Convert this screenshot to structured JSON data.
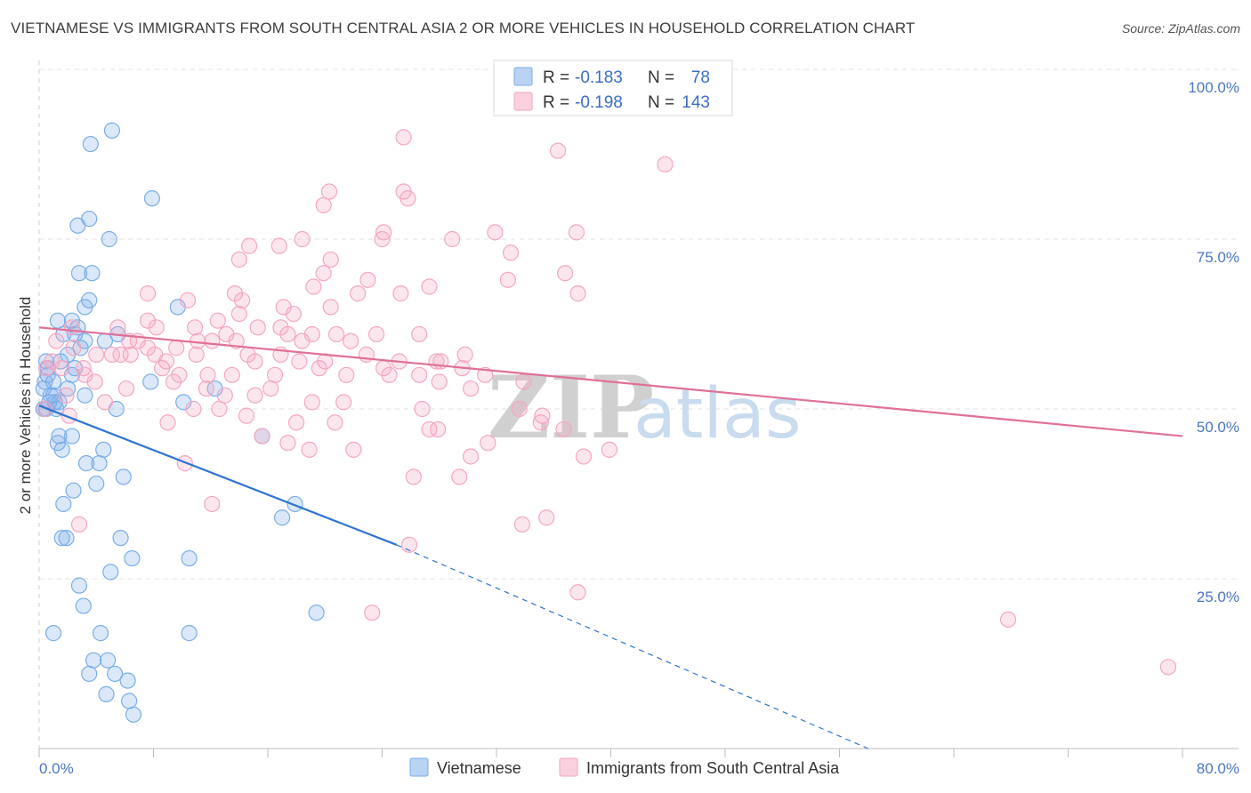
{
  "title": "VIETNAMESE VS IMMIGRANTS FROM SOUTH CENTRAL ASIA 2 OR MORE VEHICLES IN HOUSEHOLD CORRELATION CHART",
  "source": "Source: ZipAtlas.com",
  "watermark": {
    "zip": "ZIP",
    "atlas": "atlas"
  },
  "legend": {
    "rows": [
      {
        "r_label": "R = ",
        "r_value": "-0.183",
        "n_label": "N = ",
        "n_value": "78",
        "color": "#7aaee8"
      },
      {
        "r_label": "R = ",
        "r_value": "-0.198",
        "n_label": "N = ",
        "n_value": "143",
        "color": "#f4a7c0"
      }
    ]
  },
  "chart_data": {
    "type": "scatter",
    "title": "VIETNAMESE VS IMMIGRANTS FROM SOUTH CENTRAL ASIA 2 OR MORE VEHICLES IN HOUSEHOLD CORRELATION CHART",
    "xlabel": "",
    "ylabel": "2 or more Vehicles in Household",
    "xlim": [
      0,
      80
    ],
    "ylim": [
      0,
      100
    ],
    "x_tick_labels": [
      "0.0%",
      "80.0%"
    ],
    "y_tick_labels": [
      "100.0%",
      "75.0%",
      "50.0%",
      "25.0%"
    ],
    "y_tick_values": [
      100,
      75,
      50,
      25
    ],
    "grid": true,
    "legend_position": "top-center",
    "series": [
      {
        "name": "Vietnamese",
        "color": "#7aaee8",
        "line_color": "#2f74d0",
        "trend": {
          "x0": 0,
          "y0": 50.5,
          "x1": 25,
          "y1": 30,
          "dash_x1": 58,
          "dash_y1": 0
        },
        "points": [
          [
            5.1,
            91
          ],
          [
            3.6,
            89
          ],
          [
            7.9,
            81
          ],
          [
            3.5,
            78
          ],
          [
            2.7,
            77
          ],
          [
            4.9,
            75
          ],
          [
            3.7,
            70
          ],
          [
            2.8,
            70
          ],
          [
            3.5,
            66
          ],
          [
            3.2,
            65
          ],
          [
            9.7,
            65
          ],
          [
            1.3,
            63
          ],
          [
            2.3,
            63
          ],
          [
            2.7,
            62
          ],
          [
            5.5,
            61
          ],
          [
            2.5,
            61
          ],
          [
            1.7,
            61
          ],
          [
            3.2,
            60
          ],
          [
            4.6,
            60
          ],
          [
            2.9,
            59
          ],
          [
            0.5,
            57
          ],
          [
            0.6,
            56
          ],
          [
            2.5,
            56
          ],
          [
            2.3,
            55
          ],
          [
            0.6,
            55
          ],
          [
            0.4,
            54
          ],
          [
            1.0,
            54
          ],
          [
            7.8,
            54
          ],
          [
            0.3,
            53
          ],
          [
            2.0,
            53
          ],
          [
            12.3,
            53
          ],
          [
            1.0,
            52
          ],
          [
            3.2,
            52
          ],
          [
            0.7,
            51
          ],
          [
            1.1,
            51
          ],
          [
            1.4,
            51
          ],
          [
            10.1,
            51
          ],
          [
            0.3,
            50
          ],
          [
            0.5,
            50
          ],
          [
            1.2,
            50
          ],
          [
            5.4,
            50
          ],
          [
            1.4,
            46
          ],
          [
            2.3,
            46
          ],
          [
            1.3,
            45
          ],
          [
            15.6,
            46
          ],
          [
            1.6,
            44
          ],
          [
            4.5,
            44
          ],
          [
            3.3,
            42
          ],
          [
            4.2,
            42
          ],
          [
            5.9,
            40
          ],
          [
            2.4,
            38
          ],
          [
            17.9,
            36
          ],
          [
            1.7,
            36
          ],
          [
            17.0,
            34
          ],
          [
            1.9,
            31
          ],
          [
            1.6,
            31
          ],
          [
            5.7,
            31
          ],
          [
            6.5,
            28
          ],
          [
            10.5,
            28
          ],
          [
            5.0,
            26
          ],
          [
            2.8,
            24
          ],
          [
            3.1,
            21
          ],
          [
            19.4,
            20
          ],
          [
            1.0,
            17
          ],
          [
            4.3,
            17
          ],
          [
            10.5,
            17
          ],
          [
            3.8,
            13
          ],
          [
            4.8,
            13
          ],
          [
            3.5,
            11
          ],
          [
            5.3,
            11
          ],
          [
            6.2,
            10
          ],
          [
            4.7,
            8
          ],
          [
            6.3,
            7
          ],
          [
            6.6,
            5
          ],
          [
            2.0,
            58
          ],
          [
            1.5,
            57
          ],
          [
            0.8,
            52
          ],
          [
            4.0,
            39
          ]
        ]
      },
      {
        "name": "Immigrants from South Central Asia",
        "color": "#f4a7c0",
        "line_color": "#e07098",
        "trend": {
          "x0": 0,
          "y0": 62,
          "x1": 80,
          "y1": 46
        },
        "points": [
          [
            25.5,
            90
          ],
          [
            36.3,
            88
          ],
          [
            43.8,
            86
          ],
          [
            20.3,
            82
          ],
          [
            25.5,
            82
          ],
          [
            25.8,
            81
          ],
          [
            19.9,
            80
          ],
          [
            24.1,
            76
          ],
          [
            31.9,
            76
          ],
          [
            37.6,
            76
          ],
          [
            24.0,
            75
          ],
          [
            28.9,
            75
          ],
          [
            18.4,
            75
          ],
          [
            14.7,
            74
          ],
          [
            16.8,
            74
          ],
          [
            33.0,
            73
          ],
          [
            14.0,
            72
          ],
          [
            20.4,
            72
          ],
          [
            36.8,
            70
          ],
          [
            19.9,
            70
          ],
          [
            32.8,
            69
          ],
          [
            23.0,
            69
          ],
          [
            27.3,
            68
          ],
          [
            25.3,
            67
          ],
          [
            22.3,
            67
          ],
          [
            19.2,
            68
          ],
          [
            7.6,
            67
          ],
          [
            10.4,
            66
          ],
          [
            13.7,
            67
          ],
          [
            37.7,
            67
          ],
          [
            14.2,
            66
          ],
          [
            20.4,
            65
          ],
          [
            17.1,
            65
          ],
          [
            17.8,
            64
          ],
          [
            14.0,
            64
          ],
          [
            12.5,
            63
          ],
          [
            5.5,
            62
          ],
          [
            8.2,
            62
          ],
          [
            10.9,
            62
          ],
          [
            15.3,
            62
          ],
          [
            17.4,
            61
          ],
          [
            19.1,
            61
          ],
          [
            20.8,
            61
          ],
          [
            23.6,
            61
          ],
          [
            11.1,
            60
          ],
          [
            13.8,
            60
          ],
          [
            12.1,
            60
          ],
          [
            9.6,
            59
          ],
          [
            7.6,
            59
          ],
          [
            5.7,
            58
          ],
          [
            8.1,
            58
          ],
          [
            6.4,
            58
          ],
          [
            11.0,
            58
          ],
          [
            14.6,
            58
          ],
          [
            16.9,
            58
          ],
          [
            20.0,
            57
          ],
          [
            18.2,
            57
          ],
          [
            27.8,
            57
          ],
          [
            25.2,
            57
          ],
          [
            29.6,
            56
          ],
          [
            3.1,
            56
          ],
          [
            8.6,
            56
          ],
          [
            11.8,
            55
          ],
          [
            13.5,
            55
          ],
          [
            16.5,
            55
          ],
          [
            21.5,
            55
          ],
          [
            24.5,
            55
          ],
          [
            26.6,
            55
          ],
          [
            28.0,
            54
          ],
          [
            30.2,
            53
          ],
          [
            13.0,
            52
          ],
          [
            15.1,
            52
          ],
          [
            19.1,
            51
          ],
          [
            21.3,
            51
          ],
          [
            10.8,
            50
          ],
          [
            26.8,
            50
          ],
          [
            35.2,
            49
          ],
          [
            18.0,
            48
          ],
          [
            27.3,
            47
          ],
          [
            15.6,
            46
          ],
          [
            17.4,
            45
          ],
          [
            22.0,
            44
          ],
          [
            10.2,
            42
          ],
          [
            26.2,
            40
          ],
          [
            29.4,
            40
          ],
          [
            33.8,
            33
          ],
          [
            12.1,
            36
          ],
          [
            35.5,
            34
          ],
          [
            25.9,
            30
          ],
          [
            37.7,
            23
          ],
          [
            23.3,
            20
          ],
          [
            67.8,
            19
          ],
          [
            79.0,
            12
          ],
          [
            2.3,
            62
          ],
          [
            1.2,
            60
          ],
          [
            0.9,
            57
          ],
          [
            2.4,
            59
          ],
          [
            3.2,
            55
          ],
          [
            1.6,
            56
          ],
          [
            5.1,
            58
          ],
          [
            6.3,
            60
          ],
          [
            7.6,
            63
          ],
          [
            8.9,
            57
          ],
          [
            9.4,
            54
          ],
          [
            11.7,
            53
          ],
          [
            13.1,
            61
          ],
          [
            15.1,
            57
          ],
          [
            16.9,
            62
          ],
          [
            18.4,
            60
          ],
          [
            19.6,
            56
          ],
          [
            21.8,
            60
          ],
          [
            22.9,
            58
          ],
          [
            24.1,
            56
          ],
          [
            26.6,
            61
          ],
          [
            28.1,
            57
          ],
          [
            29.8,
            58
          ],
          [
            31.2,
            55
          ],
          [
            33.9,
            54
          ],
          [
            35.1,
            48
          ],
          [
            36.7,
            47
          ],
          [
            38.1,
            43
          ],
          [
            39.9,
            44
          ],
          [
            2.8,
            33
          ],
          [
            4.0,
            58
          ],
          [
            9.0,
            48
          ],
          [
            14.5,
            49
          ],
          [
            6.1,
            53
          ],
          [
            4.6,
            51
          ],
          [
            3.9,
            54
          ],
          [
            1.9,
            52
          ],
          [
            2.1,
            49
          ],
          [
            0.4,
            50
          ],
          [
            0.5,
            56
          ],
          [
            6.9,
            60
          ],
          [
            9.8,
            55
          ],
          [
            12.6,
            50
          ],
          [
            16.2,
            53
          ],
          [
            20.7,
            48
          ],
          [
            18.9,
            44
          ],
          [
            27.9,
            47
          ],
          [
            31.4,
            45
          ],
          [
            33.6,
            50
          ],
          [
            30.2,
            43
          ]
        ]
      }
    ]
  },
  "bottom_legend": [
    {
      "label": "Vietnamese",
      "color": "#7aaee8"
    },
    {
      "label": "Immigrants from South Central Asia",
      "color": "#f4a7c0"
    }
  ]
}
